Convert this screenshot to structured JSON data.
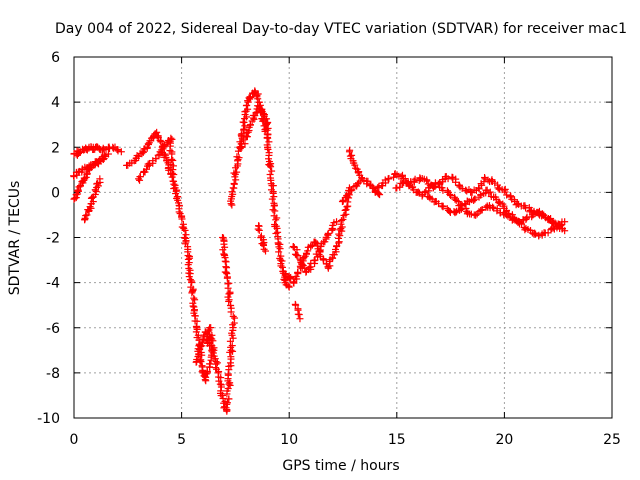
{
  "chart_data": {
    "type": "scatter",
    "title": "Day 004 of 2022, Sidereal Day-to-day VTEC variation (SDTVAR) for receiver mac1",
    "xlabel": "GPS time / hours",
    "ylabel": "SDTVAR / TECUs",
    "xlim": [
      0,
      25
    ],
    "ylim": [
      -10,
      6
    ],
    "x_ticks": [
      0,
      5,
      10,
      15,
      20,
      25
    ],
    "y_ticks": [
      -10,
      -8,
      -6,
      -4,
      -2,
      0,
      2,
      4,
      6
    ],
    "grid": true,
    "marker": "plus",
    "color": "#ff0000",
    "series": [
      {
        "name": "SDTVAR",
        "x": [
          0.0,
          0.1,
          0.2,
          0.3,
          0.4,
          0.5,
          0.6,
          0.7,
          0.8,
          0.9,
          1.0,
          1.1,
          1.2,
          1.4,
          1.6,
          1.8,
          2.0,
          2.2,
          0.0,
          0.1,
          0.2,
          0.3,
          0.4,
          0.5,
          0.6,
          0.7,
          0.8,
          0.9,
          1.0,
          1.1,
          1.2,
          1.3,
          1.4,
          0.0,
          0.2,
          0.4,
          0.6,
          0.8,
          1.0,
          1.2,
          1.4,
          1.6,
          0.5,
          0.6,
          0.7,
          0.8,
          0.9,
          1.0,
          1.1,
          1.2,
          2.5,
          2.8,
          3.0,
          3.2,
          3.4,
          3.5,
          3.6,
          3.7,
          3.8,
          3.9,
          4.0,
          4.1,
          4.2,
          4.3,
          4.4,
          4.5,
          3.0,
          3.3,
          3.5,
          3.8,
          4.0,
          4.2,
          4.5,
          4.6,
          4.7,
          4.8,
          4.9,
          5.0,
          5.1,
          5.2,
          5.3,
          5.4,
          5.5,
          5.6,
          5.7,
          5.8,
          5.9,
          6.0,
          6.1,
          6.2,
          6.3,
          6.4,
          5.7,
          5.8,
          5.9,
          6.0,
          6.1,
          6.2,
          6.3,
          6.3,
          6.4,
          6.5,
          6.6,
          6.7,
          6.8,
          6.9,
          7.0,
          7.1,
          7.2,
          7.3,
          7.4,
          6.9,
          7.0,
          7.1,
          7.2,
          7.3,
          7.3,
          7.4,
          7.5,
          7.6,
          7.7,
          7.8,
          7.9,
          8.0,
          8.1,
          8.2,
          8.3,
          8.4,
          8.5,
          8.6,
          8.7,
          8.8,
          8.9,
          9.0,
          7.8,
          8.0,
          8.2,
          8.4,
          8.6,
          8.8,
          9.0,
          9.0,
          9.1,
          9.2,
          9.3,
          9.4,
          9.5,
          9.6,
          9.7,
          9.8,
          9.9,
          10.0,
          8.6,
          8.7,
          8.8,
          8.9,
          9.8,
          10.0,
          10.2,
          10.4,
          10.6,
          10.8,
          11.0,
          11.2,
          11.4,
          11.6,
          11.8,
          12.0,
          12.2,
          12.4,
          12.6,
          12.8,
          10.2,
          10.4,
          10.6,
          10.8,
          11.0,
          11.2,
          11.4,
          11.6,
          11.8,
          12.0,
          12.2,
          10.3,
          10.5,
          12.8,
          13.0,
          13.2,
          13.4,
          13.6,
          13.8,
          14.0,
          14.2,
          12.5,
          12.7,
          12.9,
          13.1,
          13.3,
          14.0,
          14.3,
          14.6,
          14.9,
          15.2,
          15.5,
          15.8,
          16.1,
          16.4,
          16.7,
          17.0,
          17.3,
          17.6,
          17.9,
          18.2,
          18.5,
          18.8,
          19.1,
          19.4,
          19.7,
          20.0,
          20.3,
          20.6,
          20.9,
          21.2,
          21.5,
          21.8,
          22.1,
          22.4,
          22.7,
          16.5,
          16.8,
          17.1,
          17.4,
          17.7,
          18.0,
          18.3,
          18.6,
          18.9,
          19.2,
          19.5,
          19.8,
          20.1,
          20.4,
          20.7,
          21.0,
          21.3,
          21.6,
          21.9,
          22.2,
          22.5,
          22.8,
          15.0,
          15.3,
          15.6,
          15.9,
          16.2,
          16.5,
          16.8,
          17.1,
          17.4,
          17.7,
          18.0,
          18.3,
          18.6,
          18.9,
          19.2,
          19.5,
          19.8,
          20.1,
          20.4,
          20.7,
          21.0,
          21.3,
          21.6,
          21.9,
          22.2,
          22.5,
          22.8
        ],
        "y": [
          1.7,
          1.7,
          1.8,
          1.8,
          1.9,
          1.9,
          1.9,
          2.0,
          2.0,
          1.9,
          2.0,
          2.0,
          1.9,
          1.9,
          2.0,
          2.0,
          1.9,
          1.8,
          -0.3,
          -0.1,
          0.1,
          0.3,
          0.5,
          0.6,
          0.8,
          1.0,
          1.1,
          1.2,
          1.3,
          1.3,
          1.4,
          1.5,
          1.5,
          0.7,
          0.9,
          1.0,
          1.1,
          1.2,
          1.3,
          1.4,
          1.6,
          1.7,
          -1.2,
          -1.0,
          -0.8,
          -0.5,
          -0.2,
          0.1,
          0.4,
          0.6,
          1.2,
          1.4,
          1.6,
          1.8,
          2.0,
          2.2,
          2.4,
          2.5,
          2.6,
          2.5,
          2.3,
          2.0,
          1.7,
          1.4,
          1.1,
          0.8,
          0.6,
          0.9,
          1.2,
          1.5,
          1.8,
          2.1,
          2.4,
          0.5,
          0.2,
          -0.2,
          -0.6,
          -1.1,
          -1.6,
          -2.2,
          -2.8,
          -3.6,
          -4.4,
          -5.2,
          -6.0,
          -6.8,
          -7.5,
          -8.0,
          -8.3,
          -8.0,
          -7.6,
          -7.0,
          -7.5,
          -7.2,
          -6.8,
          -6.5,
          -6.2,
          -6.5,
          -6.8,
          -6.0,
          -6.5,
          -7.0,
          -7.5,
          -8.0,
          -8.5,
          -9.0,
          -9.5,
          -9.7,
          -8.5,
          -7.0,
          -5.5,
          -2.0,
          -2.8,
          -3.6,
          -4.5,
          -5.3,
          -0.5,
          0.2,
          0.8,
          1.4,
          2.0,
          2.6,
          3.1,
          3.6,
          4.0,
          4.2,
          4.4,
          4.5,
          4.3,
          4.0,
          3.6,
          3.2,
          2.8,
          2.4,
          2.0,
          2.5,
          3.0,
          3.4,
          3.8,
          3.5,
          3.1,
          2.0,
          1.2,
          0.3,
          -0.6,
          -1.5,
          -2.3,
          -3.0,
          -3.5,
          -3.9,
          -4.1,
          -4.2,
          -1.5,
          -2.0,
          -2.3,
          -2.6,
          -3.6,
          -3.8,
          -4.0,
          -3.6,
          -3.2,
          -2.7,
          -2.4,
          -2.2,
          -2.6,
          -3.0,
          -3.3,
          -2.9,
          -2.4,
          -1.6,
          -0.8,
          0.2,
          -2.4,
          -2.8,
          -3.2,
          -3.5,
          -3.3,
          -3.0,
          -2.6,
          -2.2,
          -1.9,
          -1.6,
          -1.3,
          -5.0,
          -5.6,
          1.8,
          1.3,
          0.9,
          0.6,
          0.5,
          0.3,
          0.1,
          -0.1,
          -0.4,
          -0.2,
          0.1,
          0.3,
          0.5,
          0.0,
          0.3,
          0.6,
          0.8,
          0.7,
          0.4,
          0.5,
          0.6,
          0.5,
          0.2,
          0.4,
          0.7,
          0.6,
          0.3,
          0.1,
          0.0,
          0.2,
          0.6,
          0.5,
          0.2,
          0.1,
          -0.2,
          -0.5,
          -0.6,
          -0.8,
          -0.9,
          -1.0,
          -1.2,
          -1.4,
          -1.6,
          -0.2,
          -0.4,
          -0.6,
          -0.8,
          -0.9,
          -0.7,
          -0.4,
          -0.3,
          -0.1,
          0.1,
          -0.2,
          -0.5,
          -0.8,
          -1.1,
          -1.4,
          -1.6,
          -1.8,
          -1.9,
          -1.8,
          -1.6,
          -1.5,
          -1.7,
          0.2,
          0.5,
          0.3,
          0.0,
          -0.1,
          0.2,
          0.4,
          0.2,
          0.0,
          -0.3,
          -0.6,
          -0.9,
          -1.0,
          -0.8,
          -0.6,
          -0.7,
          -0.9,
          -1.0,
          -1.2,
          -1.3,
          -1.2,
          -1.0,
          -0.9,
          -1.1,
          -1.3,
          -1.4,
          -1.3
        ]
      }
    ]
  }
}
